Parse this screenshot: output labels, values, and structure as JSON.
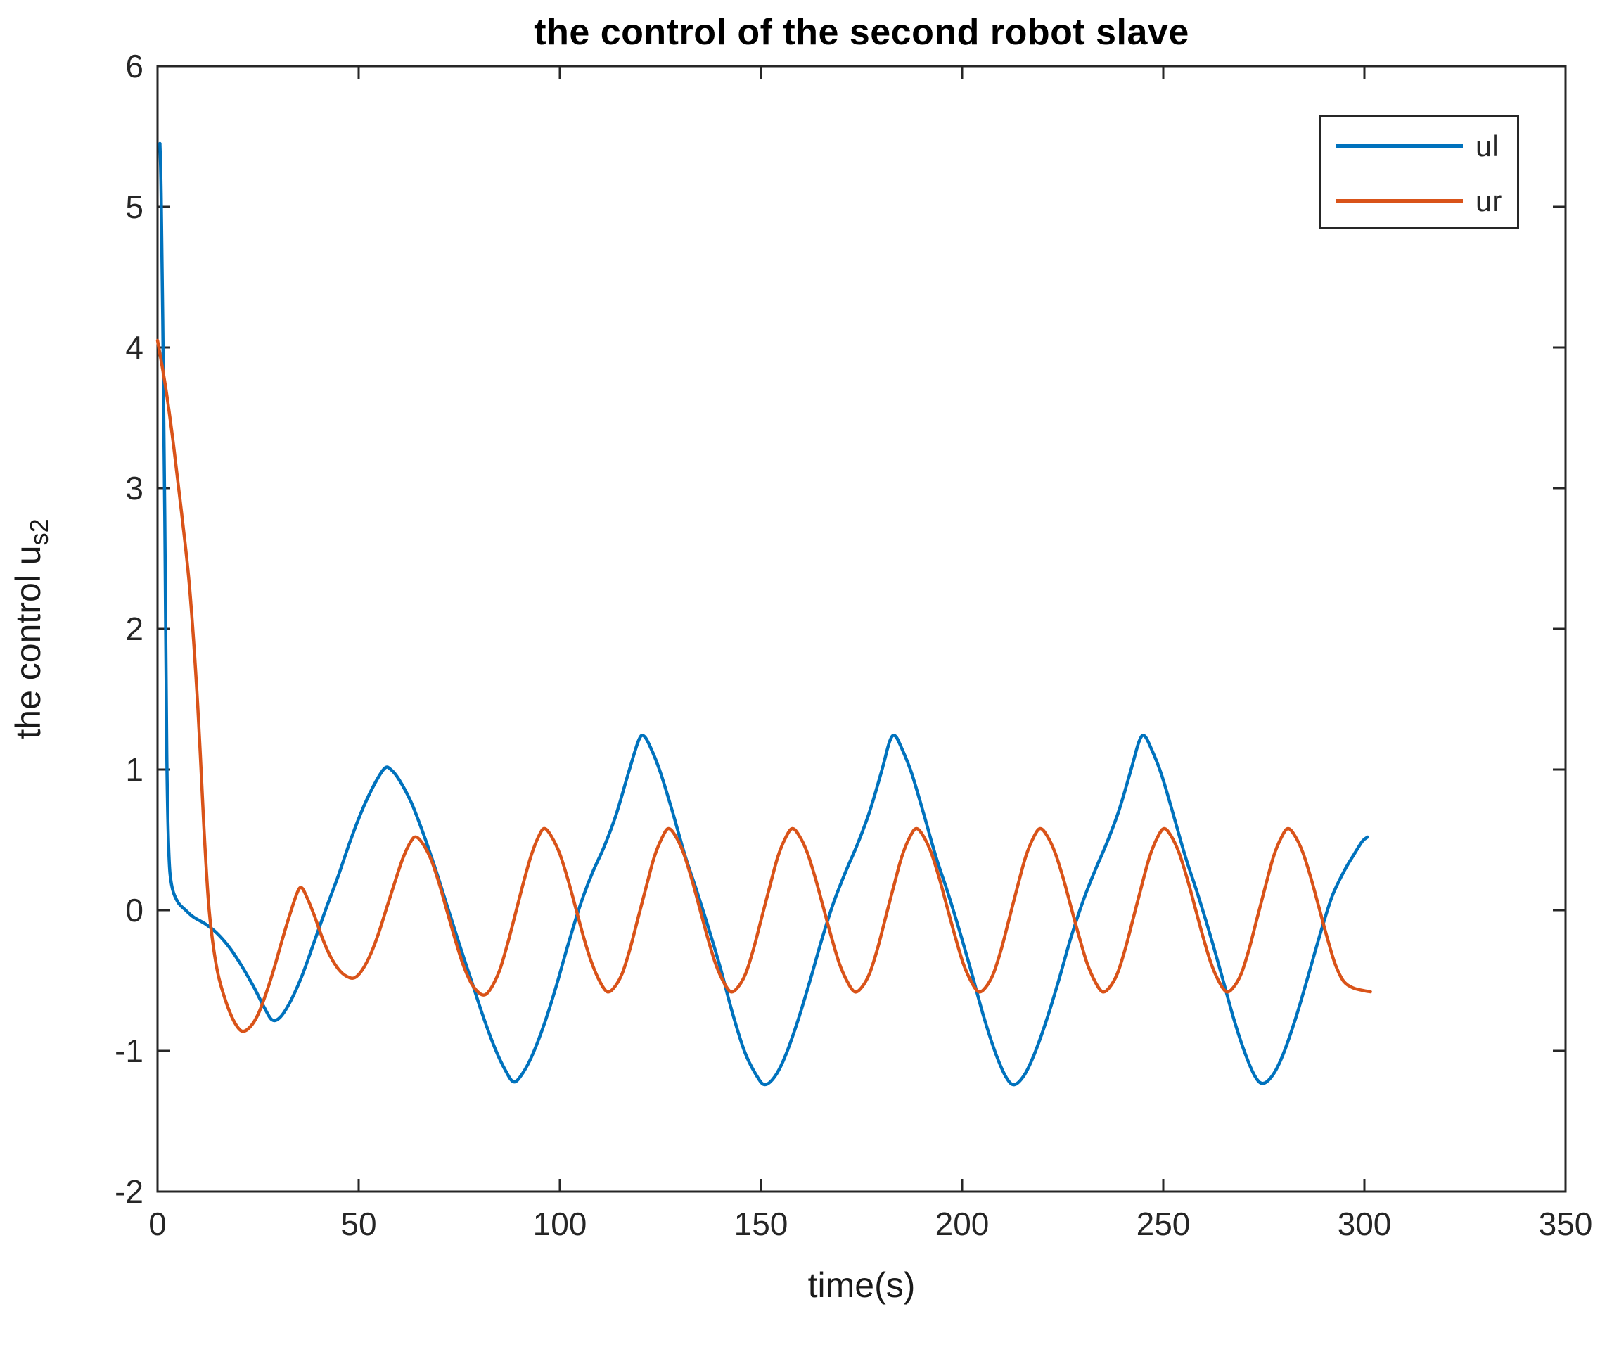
{
  "chart_data": {
    "type": "line",
    "title": "the control of the second robot slave",
    "xlabel": "time(s)",
    "ylabel": "the control u_s2",
    "ylabel_main": "the control u",
    "ylabel_sub": "s2",
    "xlim": [
      0,
      350
    ],
    "ylim": [
      -2,
      6
    ],
    "x_ticks": [
      0,
      50,
      100,
      150,
      200,
      250,
      300,
      350
    ],
    "y_ticks": [
      -2,
      -1,
      0,
      1,
      2,
      3,
      4,
      5,
      6
    ],
    "grid": false,
    "legend_position": "top-right",
    "axis_color": "#262626",
    "tick_label_color": "#262626",
    "background": "#ffffff",
    "series": [
      {
        "name": "ul",
        "color": "#0072BD",
        "points": [
          [
            0.6,
            5.45
          ],
          [
            0.9,
            5.1
          ],
          [
            1.3,
            4.2
          ],
          [
            1.8,
            2.8
          ],
          [
            2.3,
            1.1
          ],
          [
            2.8,
            0.42
          ],
          [
            3.5,
            0.18
          ],
          [
            5,
            0.06
          ],
          [
            7,
            0.0
          ],
          [
            9,
            -0.05
          ],
          [
            12,
            -0.1
          ],
          [
            15,
            -0.17
          ],
          [
            18,
            -0.27
          ],
          [
            21,
            -0.4
          ],
          [
            24,
            -0.55
          ],
          [
            26.5,
            -0.69
          ],
          [
            28.5,
            -0.78
          ],
          [
            30.5,
            -0.76
          ],
          [
            33,
            -0.65
          ],
          [
            36,
            -0.46
          ],
          [
            39,
            -0.22
          ],
          [
            42,
            0.02
          ],
          [
            45,
            0.25
          ],
          [
            48,
            0.5
          ],
          [
            51,
            0.72
          ],
          [
            54,
            0.9
          ],
          [
            56.5,
            1.01
          ],
          [
            58,
            1.0
          ],
          [
            60,
            0.93
          ],
          [
            63,
            0.77
          ],
          [
            66,
            0.55
          ],
          [
            69,
            0.3
          ],
          [
            72,
            0.03
          ],
          [
            75,
            -0.24
          ],
          [
            78,
            -0.5
          ],
          [
            81,
            -0.76
          ],
          [
            84,
            -0.99
          ],
          [
            86.5,
            -1.14
          ],
          [
            88.5,
            -1.22
          ],
          [
            90.5,
            -1.17
          ],
          [
            93,
            -1.04
          ],
          [
            96,
            -0.82
          ],
          [
            99,
            -0.55
          ],
          [
            102,
            -0.25
          ],
          [
            105,
            0.03
          ],
          [
            108,
            0.26
          ],
          [
            111,
            0.45
          ],
          [
            114,
            0.68
          ],
          [
            117,
            0.97
          ],
          [
            119.5,
            1.2
          ],
          [
            120.8,
            1.24
          ],
          [
            122.5,
            1.16
          ],
          [
            125,
            0.98
          ],
          [
            128,
            0.7
          ],
          [
            131,
            0.4
          ],
          [
            134,
            0.14
          ],
          [
            137,
            -0.13
          ],
          [
            140,
            -0.42
          ],
          [
            143,
            -0.74
          ],
          [
            146,
            -1.01
          ],
          [
            149,
            -1.18
          ],
          [
            151,
            -1.24
          ],
          [
            153.5,
            -1.18
          ],
          [
            156,
            -1.04
          ],
          [
            159,
            -0.8
          ],
          [
            162,
            -0.52
          ],
          [
            165,
            -0.22
          ],
          [
            168,
            0.05
          ],
          [
            171,
            0.27
          ],
          [
            174,
            0.47
          ],
          [
            177,
            0.7
          ],
          [
            180,
            0.99
          ],
          [
            182,
            1.2
          ],
          [
            183.3,
            1.24
          ],
          [
            185,
            1.15
          ],
          [
            187.5,
            0.97
          ],
          [
            190.5,
            0.68
          ],
          [
            193.5,
            0.38
          ],
          [
            196.5,
            0.12
          ],
          [
            199.5,
            -0.16
          ],
          [
            202.5,
            -0.46
          ],
          [
            205.5,
            -0.77
          ],
          [
            208.5,
            -1.03
          ],
          [
            211,
            -1.19
          ],
          [
            213,
            -1.24
          ],
          [
            215.5,
            -1.17
          ],
          [
            218,
            -1.02
          ],
          [
            221,
            -0.78
          ],
          [
            224,
            -0.5
          ],
          [
            227,
            -0.2
          ],
          [
            230,
            0.06
          ],
          [
            233,
            0.28
          ],
          [
            236,
            0.48
          ],
          [
            239,
            0.71
          ],
          [
            242,
            1.0
          ],
          [
            244,
            1.2
          ],
          [
            245.3,
            1.24
          ],
          [
            247,
            1.15
          ],
          [
            249.5,
            0.97
          ],
          [
            252.5,
            0.68
          ],
          [
            255.5,
            0.38
          ],
          [
            258.5,
            0.12
          ],
          [
            261.5,
            -0.16
          ],
          [
            264.5,
            -0.46
          ],
          [
            267.5,
            -0.77
          ],
          [
            270.5,
            -1.03
          ],
          [
            273,
            -1.19
          ],
          [
            275,
            -1.23
          ],
          [
            277.5,
            -1.16
          ],
          [
            280,
            -1.01
          ],
          [
            283,
            -0.76
          ],
          [
            286,
            -0.47
          ],
          [
            289,
            -0.17
          ],
          [
            292,
            0.1
          ],
          [
            295,
            0.28
          ],
          [
            297.5,
            0.4
          ],
          [
            299.5,
            0.49
          ],
          [
            300.8,
            0.52
          ]
        ]
      },
      {
        "name": "ur",
        "color": "#D95319",
        "points": [
          [
            0,
            4.05
          ],
          [
            2,
            3.72
          ],
          [
            4,
            3.3
          ],
          [
            6,
            2.82
          ],
          [
            8,
            2.28
          ],
          [
            10,
            1.45
          ],
          [
            11.5,
            0.6
          ],
          [
            12.6,
            0.08
          ],
          [
            13.6,
            -0.2
          ],
          [
            15,
            -0.45
          ],
          [
            17,
            -0.65
          ],
          [
            19,
            -0.79
          ],
          [
            21,
            -0.86
          ],
          [
            23,
            -0.83
          ],
          [
            25,
            -0.74
          ],
          [
            27,
            -0.59
          ],
          [
            29,
            -0.41
          ],
          [
            31,
            -0.21
          ],
          [
            33,
            -0.02
          ],
          [
            34.8,
            0.13
          ],
          [
            35.8,
            0.16
          ],
          [
            37,
            0.1
          ],
          [
            39,
            -0.04
          ],
          [
            41,
            -0.2
          ],
          [
            43,
            -0.33
          ],
          [
            45,
            -0.42
          ],
          [
            47,
            -0.47
          ],
          [
            49,
            -0.48
          ],
          [
            51,
            -0.42
          ],
          [
            53,
            -0.31
          ],
          [
            55,
            -0.16
          ],
          [
            57,
            0.02
          ],
          [
            59,
            0.2
          ],
          [
            61,
            0.37
          ],
          [
            63,
            0.49
          ],
          [
            64.3,
            0.52
          ],
          [
            66,
            0.47
          ],
          [
            68,
            0.36
          ],
          [
            70,
            0.19
          ],
          [
            72,
            -0.01
          ],
          [
            74,
            -0.21
          ],
          [
            76,
            -0.39
          ],
          [
            78,
            -0.52
          ],
          [
            80,
            -0.59
          ],
          [
            81.5,
            -0.6
          ],
          [
            83,
            -0.55
          ],
          [
            85,
            -0.43
          ],
          [
            87,
            -0.24
          ],
          [
            89,
            -0.02
          ],
          [
            91,
            0.2
          ],
          [
            93,
            0.4
          ],
          [
            95,
            0.54
          ],
          [
            96.3,
            0.58
          ],
          [
            98,
            0.52
          ],
          [
            100,
            0.4
          ],
          [
            102,
            0.22
          ],
          [
            104,
            0.01
          ],
          [
            106,
            -0.2
          ],
          [
            108,
            -0.38
          ],
          [
            110,
            -0.51
          ],
          [
            111.8,
            -0.58
          ],
          [
            113.5,
            -0.55
          ],
          [
            115.5,
            -0.45
          ],
          [
            117.5,
            -0.27
          ],
          [
            119.5,
            -0.05
          ],
          [
            121.5,
            0.17
          ],
          [
            123.5,
            0.38
          ],
          [
            125.5,
            0.52
          ],
          [
            127,
            0.58
          ],
          [
            128.7,
            0.53
          ],
          [
            130.7,
            0.41
          ],
          [
            132.7,
            0.23
          ],
          [
            134.7,
            0.02
          ],
          [
            136.7,
            -0.19
          ],
          [
            138.7,
            -0.38
          ],
          [
            140.7,
            -0.51
          ],
          [
            142.5,
            -0.58
          ],
          [
            144.2,
            -0.55
          ],
          [
            146.2,
            -0.45
          ],
          [
            148.2,
            -0.27
          ],
          [
            150.2,
            -0.05
          ],
          [
            152.2,
            0.17
          ],
          [
            154.2,
            0.38
          ],
          [
            156.2,
            0.52
          ],
          [
            157.8,
            0.58
          ],
          [
            159.5,
            0.53
          ],
          [
            161.5,
            0.41
          ],
          [
            163.5,
            0.23
          ],
          [
            165.5,
            0.02
          ],
          [
            167.5,
            -0.19
          ],
          [
            169.5,
            -0.38
          ],
          [
            171.5,
            -0.51
          ],
          [
            173.3,
            -0.58
          ],
          [
            175,
            -0.55
          ],
          [
            177,
            -0.45
          ],
          [
            179,
            -0.27
          ],
          [
            181,
            -0.05
          ],
          [
            183,
            0.17
          ],
          [
            185,
            0.38
          ],
          [
            187,
            0.52
          ],
          [
            188.6,
            0.58
          ],
          [
            190.3,
            0.53
          ],
          [
            192.3,
            0.41
          ],
          [
            194.3,
            0.23
          ],
          [
            196.3,
            0.02
          ],
          [
            198.3,
            -0.19
          ],
          [
            200.3,
            -0.38
          ],
          [
            202.3,
            -0.51
          ],
          [
            204.1,
            -0.58
          ],
          [
            205.8,
            -0.55
          ],
          [
            207.8,
            -0.45
          ],
          [
            209.8,
            -0.27
          ],
          [
            211.8,
            -0.05
          ],
          [
            213.8,
            0.17
          ],
          [
            215.8,
            0.38
          ],
          [
            217.8,
            0.52
          ],
          [
            219.4,
            0.58
          ],
          [
            221.1,
            0.53
          ],
          [
            223.1,
            0.41
          ],
          [
            225.1,
            0.23
          ],
          [
            227.1,
            0.02
          ],
          [
            229.1,
            -0.19
          ],
          [
            231.1,
            -0.38
          ],
          [
            233.1,
            -0.51
          ],
          [
            234.9,
            -0.58
          ],
          [
            236.6,
            -0.55
          ],
          [
            238.6,
            -0.45
          ],
          [
            240.6,
            -0.27
          ],
          [
            242.6,
            -0.05
          ],
          [
            244.6,
            0.17
          ],
          [
            246.6,
            0.38
          ],
          [
            248.6,
            0.52
          ],
          [
            250.2,
            0.58
          ],
          [
            251.9,
            0.53
          ],
          [
            253.9,
            0.41
          ],
          [
            255.9,
            0.23
          ],
          [
            257.9,
            0.02
          ],
          [
            259.9,
            -0.19
          ],
          [
            261.9,
            -0.38
          ],
          [
            263.9,
            -0.51
          ],
          [
            265.7,
            -0.58
          ],
          [
            267.4,
            -0.55
          ],
          [
            269.4,
            -0.45
          ],
          [
            271.4,
            -0.27
          ],
          [
            273.4,
            -0.05
          ],
          [
            275.4,
            0.17
          ],
          [
            277.4,
            0.38
          ],
          [
            279.4,
            0.52
          ],
          [
            281,
            0.58
          ],
          [
            282.7,
            0.53
          ],
          [
            284.7,
            0.41
          ],
          [
            286.7,
            0.23
          ],
          [
            288.7,
            0.02
          ],
          [
            290.7,
            -0.19
          ],
          [
            292.7,
            -0.38
          ],
          [
            294.7,
            -0.5
          ],
          [
            297,
            -0.55
          ],
          [
            299.5,
            -0.57
          ],
          [
            301.5,
            -0.58
          ]
        ]
      }
    ]
  }
}
